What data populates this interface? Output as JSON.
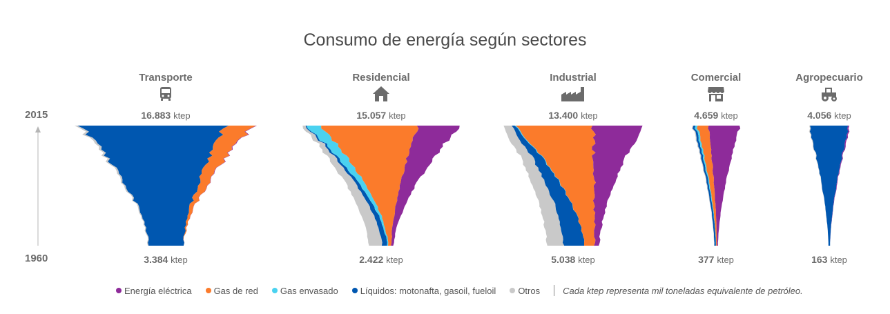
{
  "title": "Consumo de energía según sectores",
  "years": {
    "top": "2015",
    "bottom": "1960"
  },
  "unit": "ktep",
  "legend_note": "Cada ktep representa mil toneladas equivalente de petróleo.",
  "colors": {
    "Energía eléctrica": "#8e2b9a",
    "Gas de red": "#fb7b2b",
    "Gas envasado": "#4ad2f0",
    "Líquidos: motonafta, gasoil, fueloil": "#0057b0",
    "Otros": "#c9c9c9"
  },
  "chart_data": {
    "type": "area",
    "title": "Consumo de energía según sectores",
    "units": "ktep",
    "legend": [
      "Energía eléctrica",
      "Gas de red",
      "Gas envasado",
      "Líquidos: motonafta, gasoil, fueloil",
      "Otros"
    ],
    "x": [
      1960,
      2015
    ],
    "sectors": [
      {
        "name": "Transporte",
        "icon": "bus-icon",
        "total_1960": "3.384",
        "total_2015": "16.883",
        "start_values": {
          "Otros": 84,
          "Líquidos: motonafta, gasoil, fueloil": 3300,
          "Gas envasado": 0,
          "Gas de red": 0,
          "Energía eléctrica": 0
        },
        "end_values": {
          "Otros": 300,
          "Líquidos: motonafta, gasoil, fueloil": 13900,
          "Gas envasado": 0,
          "Gas de red": 2600,
          "Energía eléctrica": 83
        }
      },
      {
        "name": "Residencial",
        "icon": "house-icon",
        "total_1960": "2.422",
        "total_2015": "15.057",
        "start_values": {
          "Otros": 1300,
          "Líquidos: motonafta, gasoil, fueloil": 500,
          "Gas envasado": 100,
          "Gas de red": 300,
          "Energía eléctrica": 222
        },
        "end_values": {
          "Otros": 300,
          "Líquidos: motonafta, gasoil, fueloil": 100,
          "Gas envasado": 1400,
          "Gas de red": 9200,
          "Energía eléctrica": 4057
        }
      },
      {
        "name": "Industrial",
        "icon": "factory-icon",
        "total_1960": "5.038",
        "total_2015": "13.400",
        "start_values": {
          "Otros": 1600,
          "Líquidos: motonafta, gasoil, fueloil": 2000,
          "Gas envasado": 0,
          "Gas de red": 1000,
          "Energía eléctrica": 438
        },
        "end_values": {
          "Otros": 800,
          "Líquidos: motonafta, gasoil, fueloil": 300,
          "Gas envasado": 100,
          "Gas de red": 7400,
          "Energía eléctrica": 4800
        }
      },
      {
        "name": "Comercial",
        "icon": "store-icon",
        "total_1960": "377",
        "total_2015": "4.659",
        "start_values": {
          "Otros": 30,
          "Líquidos: motonafta, gasoil, fueloil": 150,
          "Gas envasado": 20,
          "Gas de red": 80,
          "Energía eléctrica": 97
        },
        "end_values": {
          "Otros": 100,
          "Líquidos: motonafta, gasoil, fueloil": 200,
          "Gas envasado": 200,
          "Gas de red": 1100,
          "Energía eléctrica": 3059
        }
      },
      {
        "name": "Agropecuario",
        "icon": "tractor-icon",
        "total_1960": "163",
        "total_2015": "4.056",
        "start_values": {
          "Otros": 3,
          "Líquidos: motonafta, gasoil, fueloil": 155,
          "Gas envasado": 0,
          "Gas de red": 0,
          "Energía eléctrica": 5
        },
        "end_values": {
          "Otros": 80,
          "Líquidos: motonafta, gasoil, fueloil": 3850,
          "Gas envasado": 0,
          "Gas de red": 0,
          "Energía eléctrica": 126
        }
      }
    ]
  }
}
